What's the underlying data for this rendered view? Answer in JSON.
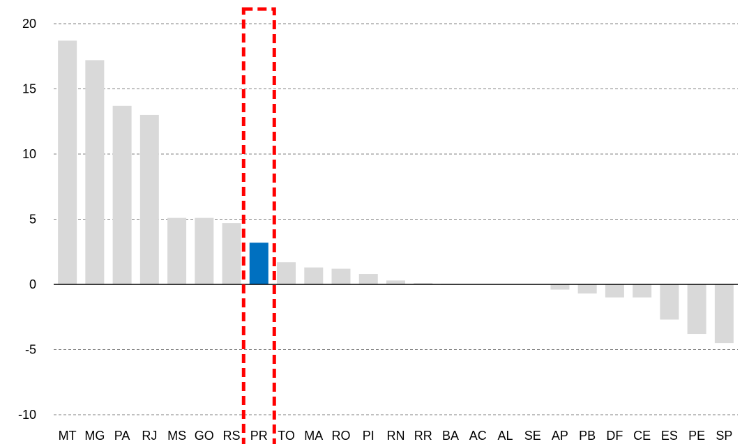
{
  "chart_data": {
    "type": "bar",
    "categories": [
      "MT",
      "MG",
      "PA",
      "RJ",
      "MS",
      "GO",
      "RS",
      "PR",
      "TO",
      "MA",
      "RO",
      "PI",
      "RN",
      "RR",
      "BA",
      "AC",
      "AL",
      "SE",
      "AP",
      "PB",
      "DF",
      "CE",
      "ES",
      "PE",
      "SP"
    ],
    "values": [
      18.7,
      17.2,
      13.7,
      13.0,
      5.1,
      5.1,
      4.7,
      3.2,
      1.7,
      1.3,
      1.2,
      0.8,
      0.3,
      0.1,
      0.05,
      0.0,
      0.0,
      0.0,
      -0.4,
      -0.7,
      -1.0,
      -1.0,
      -2.7,
      -3.8,
      -4.5
    ],
    "title": "",
    "xlabel": "",
    "ylabel": "",
    "ylim": [
      -10,
      20
    ],
    "yticks": [
      20,
      15,
      10,
      5,
      0,
      -5,
      -10
    ],
    "grid": true,
    "highlight_category": "PR",
    "colors": {
      "bar": "#d9d9d9",
      "highlight_bar": "#0070c0",
      "highlight_box": "#ff0000",
      "gridline": "#7f7f7f",
      "zero_line": "#000000"
    }
  }
}
